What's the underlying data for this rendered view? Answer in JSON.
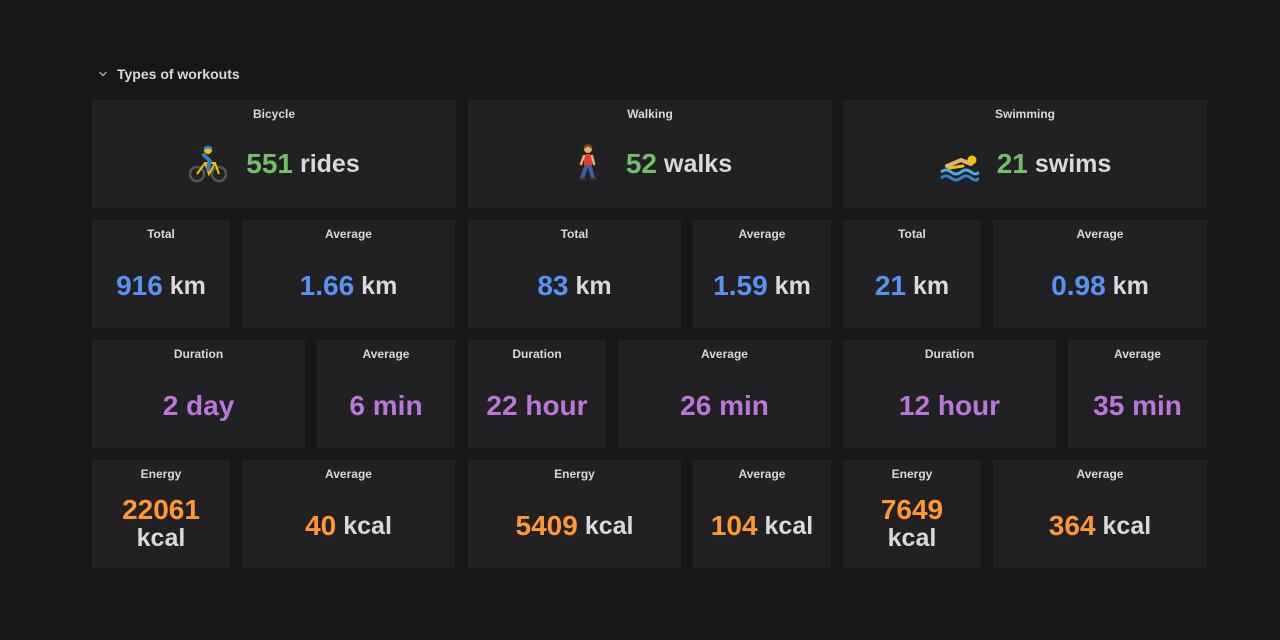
{
  "row": {
    "title": "Types of workouts"
  },
  "workouts": [
    {
      "header": {
        "title": "Bicycle",
        "value": "551",
        "unit": "rides"
      },
      "total": {
        "title": "Total",
        "value": "916",
        "unit": "km"
      },
      "avg_distance": {
        "title": "Average",
        "value": "1.66",
        "unit": "km"
      },
      "duration": {
        "title": "Duration",
        "value": "2 day"
      },
      "avg_duration": {
        "title": "Average",
        "value": "6 min"
      },
      "energy": {
        "title": "Energy",
        "value": "22061",
        "unit": "kcal"
      },
      "avg_energy": {
        "title": "Average",
        "value": "40",
        "unit": "kcal"
      }
    },
    {
      "header": {
        "title": "Walking",
        "value": "52",
        "unit": "walks"
      },
      "total": {
        "title": "Total",
        "value": "83",
        "unit": "km"
      },
      "avg_distance": {
        "title": "Average",
        "value": "1.59",
        "unit": "km"
      },
      "duration": {
        "title": "Duration",
        "value": "22 hour"
      },
      "avg_duration": {
        "title": "Average",
        "value": "26 min"
      },
      "energy": {
        "title": "Energy",
        "value": "5409",
        "unit": "kcal"
      },
      "avg_energy": {
        "title": "Average",
        "value": "104",
        "unit": "kcal"
      }
    },
    {
      "header": {
        "title": "Swimming",
        "value": "21",
        "unit": "swims"
      },
      "total": {
        "title": "Total",
        "value": "21",
        "unit": "km"
      },
      "avg_distance": {
        "title": "Average",
        "value": "0.98",
        "unit": "km"
      },
      "duration": {
        "title": "Duration",
        "value": "12 hour"
      },
      "avg_duration": {
        "title": "Average",
        "value": "35 min"
      },
      "energy": {
        "title": "Energy",
        "value": "7649",
        "unit": "kcal"
      },
      "avg_energy": {
        "title": "Average",
        "value": "364",
        "unit": "kcal"
      }
    }
  ],
  "icons": {
    "bicycle": "cyclist-icon",
    "walking": "walker-icon",
    "swimming": "swimmer-icon",
    "row_toggle": "chevron-down-icon"
  },
  "colors": {
    "count": "#73bf69",
    "distance": "#5794f2",
    "duration": "#b877d9",
    "energy": "#ff9830",
    "panel_bg": "#212124",
    "page_bg": "#161719"
  }
}
